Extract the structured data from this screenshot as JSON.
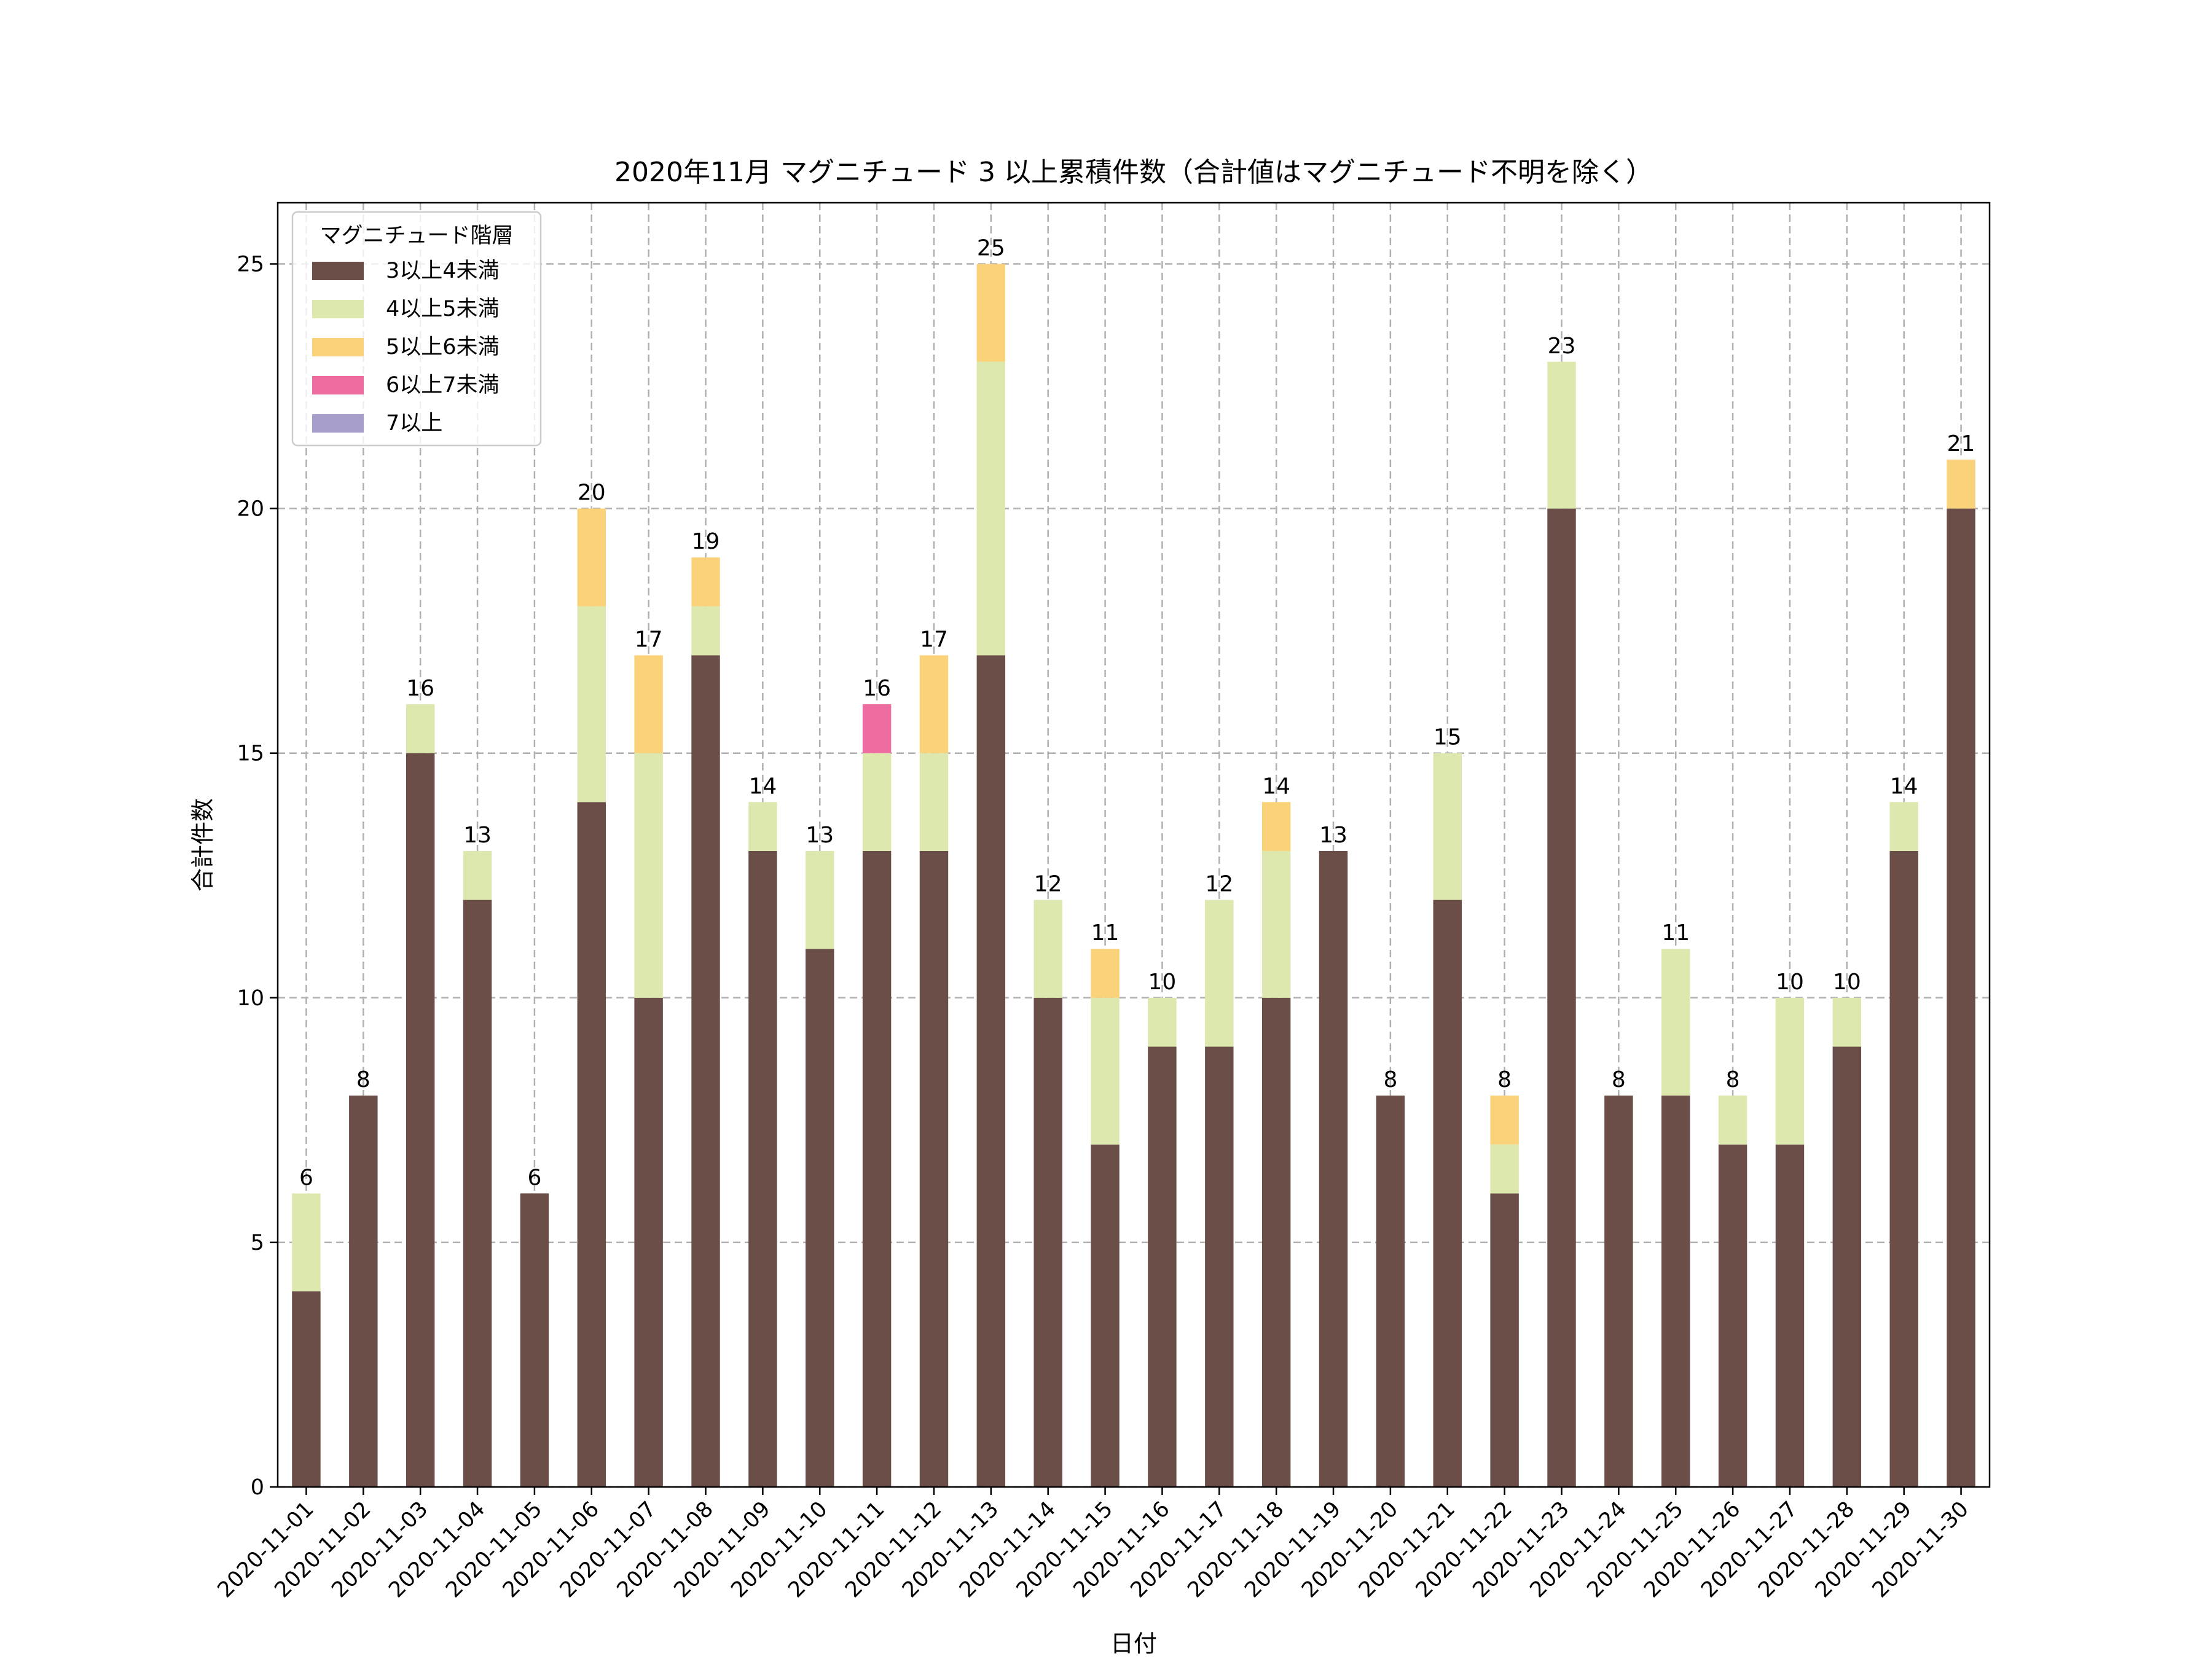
{
  "chart_data": {
    "type": "bar",
    "stacked": true,
    "title": "2020年11月 マグニチュード 3 以上累積件数（合計値はマグニチュード不明を除く）",
    "xlabel": "日付",
    "ylabel": "合計件数",
    "ylim": [
      0,
      26.25
    ],
    "yticks": [
      0,
      5,
      10,
      15,
      20,
      25
    ],
    "grid": true,
    "legend_position": "top-left",
    "legend_title": "マグニチュード階層",
    "categories": [
      "2020-11-01",
      "2020-11-02",
      "2020-11-03",
      "2020-11-04",
      "2020-11-05",
      "2020-11-06",
      "2020-11-07",
      "2020-11-08",
      "2020-11-09",
      "2020-11-10",
      "2020-11-11",
      "2020-11-12",
      "2020-11-13",
      "2020-11-14",
      "2020-11-15",
      "2020-11-16",
      "2020-11-17",
      "2020-11-18",
      "2020-11-19",
      "2020-11-20",
      "2020-11-21",
      "2020-11-22",
      "2020-11-23",
      "2020-11-24",
      "2020-11-25",
      "2020-11-26",
      "2020-11-27",
      "2020-11-28",
      "2020-11-29",
      "2020-11-30"
    ],
    "series": [
      {
        "name": "3以上4未満",
        "color": "#6b4e48",
        "values": [
          4,
          8,
          15,
          12,
          6,
          14,
          10,
          17,
          13,
          11,
          13,
          13,
          17,
          10,
          7,
          9,
          9,
          10,
          13,
          8,
          12,
          6,
          20,
          8,
          8,
          7,
          7,
          9,
          13,
          20
        ]
      },
      {
        "name": "4以上5未満",
        "color": "#dce8ae",
        "values": [
          2,
          0,
          1,
          1,
          0,
          4,
          5,
          1,
          1,
          2,
          2,
          2,
          6,
          2,
          3,
          1,
          3,
          3,
          0,
          0,
          3,
          1,
          3,
          0,
          3,
          1,
          3,
          1,
          1,
          0
        ]
      },
      {
        "name": "5以上6未満",
        "color": "#fad27a",
        "values": [
          0,
          0,
          0,
          0,
          0,
          2,
          2,
          1,
          0,
          0,
          0,
          2,
          2,
          0,
          1,
          0,
          0,
          1,
          0,
          0,
          0,
          1,
          0,
          0,
          0,
          0,
          0,
          0,
          0,
          1
        ]
      },
      {
        "name": "6以上7未満",
        "color": "#ee6da1",
        "values": [
          0,
          0,
          0,
          0,
          0,
          0,
          0,
          0,
          0,
          0,
          1,
          0,
          0,
          0,
          0,
          0,
          0,
          0,
          0,
          0,
          0,
          0,
          0,
          0,
          0,
          0,
          0,
          0,
          0,
          0
        ]
      },
      {
        "name": "7以上",
        "color": "#a79ecb",
        "values": [
          0,
          0,
          0,
          0,
          0,
          0,
          0,
          0,
          0,
          0,
          0,
          0,
          0,
          0,
          0,
          0,
          0,
          0,
          0,
          0,
          0,
          0,
          0,
          0,
          0,
          0,
          0,
          0,
          0,
          0
        ]
      }
    ],
    "totals": [
      6,
      8,
      16,
      13,
      6,
      20,
      17,
      19,
      14,
      13,
      16,
      17,
      25,
      12,
      11,
      10,
      12,
      14,
      13,
      8,
      15,
      8,
      23,
      8,
      11,
      8,
      10,
      10,
      14,
      21
    ]
  }
}
